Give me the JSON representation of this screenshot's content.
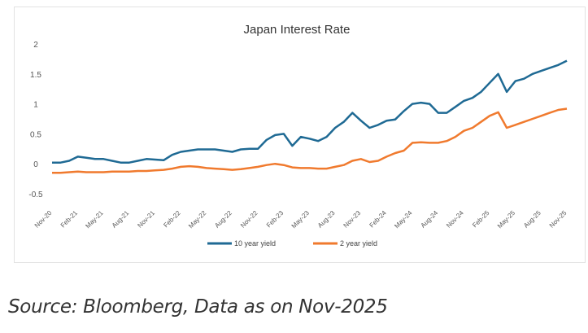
{
  "chart_data": {
    "type": "line",
    "title": "Japan Interest  Rate",
    "xlabel": "",
    "ylabel": "",
    "ylim": [
      -0.5,
      2
    ],
    "yticks": [
      "2",
      "1.5",
      "1",
      "0.5",
      "0",
      "-0.5"
    ],
    "ytick_values": [
      2,
      1.5,
      1,
      0.5,
      0,
      -0.5
    ],
    "xtick_labels": [
      "Nov-20",
      "Feb-21",
      "May-21",
      "Aug-21",
      "Nov-21",
      "Feb-22",
      "May-22",
      "Aug-22",
      "Nov-22",
      "Feb-23",
      "May-23",
      "Aug-23",
      "Nov-23",
      "Feb-24",
      "May-24",
      "Aug-24",
      "Nov-24",
      "Feb-25",
      "May-25",
      "Aug-25",
      "Nov-25"
    ],
    "grid": false,
    "legend": "bottom",
    "series": [
      {
        "name": "10 year yield",
        "color": "#1f6a94",
        "values": [
          0.02,
          0.02,
          0.05,
          0.12,
          0.1,
          0.08,
          0.08,
          0.05,
          0.02,
          0.02,
          0.05,
          0.08,
          0.07,
          0.06,
          0.15,
          0.2,
          0.22,
          0.24,
          0.24,
          0.24,
          0.22,
          0.2,
          0.24,
          0.25,
          0.25,
          0.4,
          0.48,
          0.5,
          0.3,
          0.45,
          0.42,
          0.38,
          0.45,
          0.6,
          0.7,
          0.85,
          0.72,
          0.6,
          0.65,
          0.72,
          0.74,
          0.88,
          1.0,
          1.02,
          1.0,
          0.85,
          0.85,
          0.95,
          1.05,
          1.1,
          1.2,
          1.35,
          1.5,
          1.2,
          1.38,
          1.42,
          1.5,
          1.55,
          1.6,
          1.65,
          1.72
        ]
      },
      {
        "name": "2 year yield",
        "color": "#f07a2e",
        "values": [
          -0.15,
          -0.15,
          -0.14,
          -0.13,
          -0.14,
          -0.14,
          -0.14,
          -0.13,
          -0.13,
          -0.13,
          -0.12,
          -0.12,
          -0.11,
          -0.1,
          -0.08,
          -0.05,
          -0.04,
          -0.05,
          -0.07,
          -0.08,
          -0.09,
          -0.1,
          -0.09,
          -0.07,
          -0.05,
          -0.02,
          0.0,
          -0.02,
          -0.06,
          -0.07,
          -0.07,
          -0.08,
          -0.08,
          -0.05,
          -0.02,
          0.05,
          0.08,
          0.03,
          0.05,
          0.12,
          0.18,
          0.22,
          0.35,
          0.36,
          0.35,
          0.35,
          0.38,
          0.45,
          0.55,
          0.6,
          0.7,
          0.8,
          0.86,
          0.6,
          0.65,
          0.7,
          0.75,
          0.8,
          0.85,
          0.9,
          0.92
        ]
      }
    ]
  },
  "source": "Source: Bloomberg, Data as on Nov-2025"
}
